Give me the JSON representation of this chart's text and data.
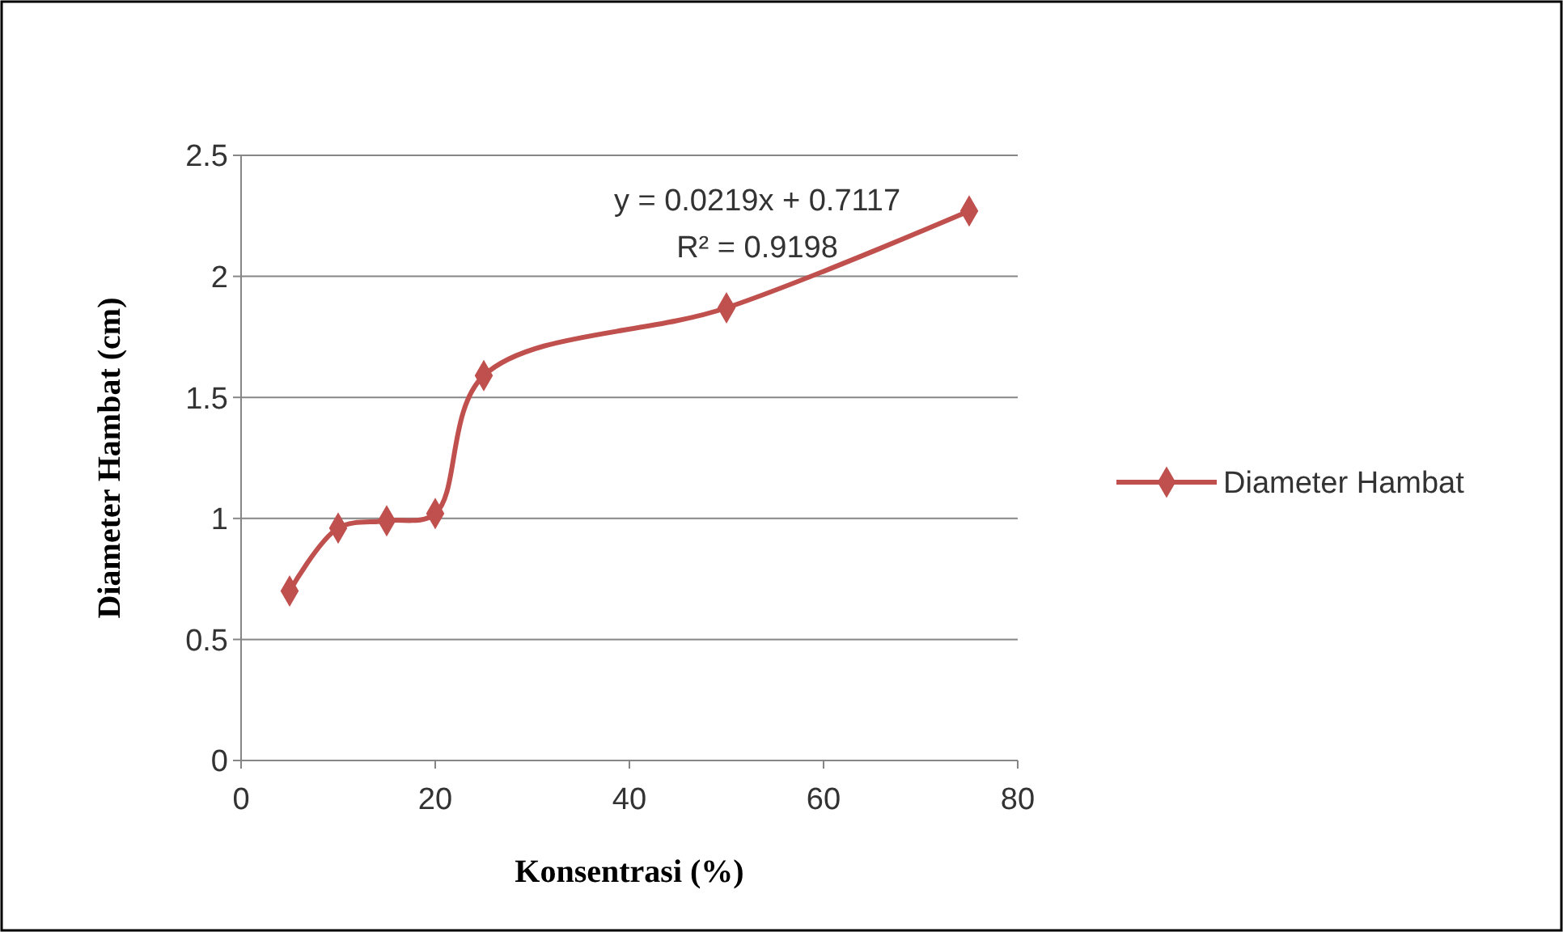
{
  "chart_data": {
    "type": "line",
    "xlabel": "Konsentrasi (%)",
    "ylabel": "Diameter Hambat (cm)",
    "x": [
      5,
      10,
      15,
      20,
      25,
      50,
      75
    ],
    "series": [
      {
        "name": "Diameter Hambat",
        "color": "#c0504d",
        "values": [
          0.7,
          0.96,
          0.99,
          1.02,
          1.59,
          1.87,
          2.27
        ]
      }
    ],
    "xlim": [
      0,
      80
    ],
    "xticks": [
      0,
      20,
      40,
      60,
      80
    ],
    "ylim": [
      0,
      2.5
    ],
    "yticks": [
      0,
      0.5,
      1,
      1.5,
      2,
      2.5
    ],
    "grid": "y",
    "legend": "right",
    "marker": "diamond",
    "line_style": "solid",
    "annotations": [
      "y = 0.0219x + 0.7117",
      "R² = 0.9198"
    ]
  }
}
